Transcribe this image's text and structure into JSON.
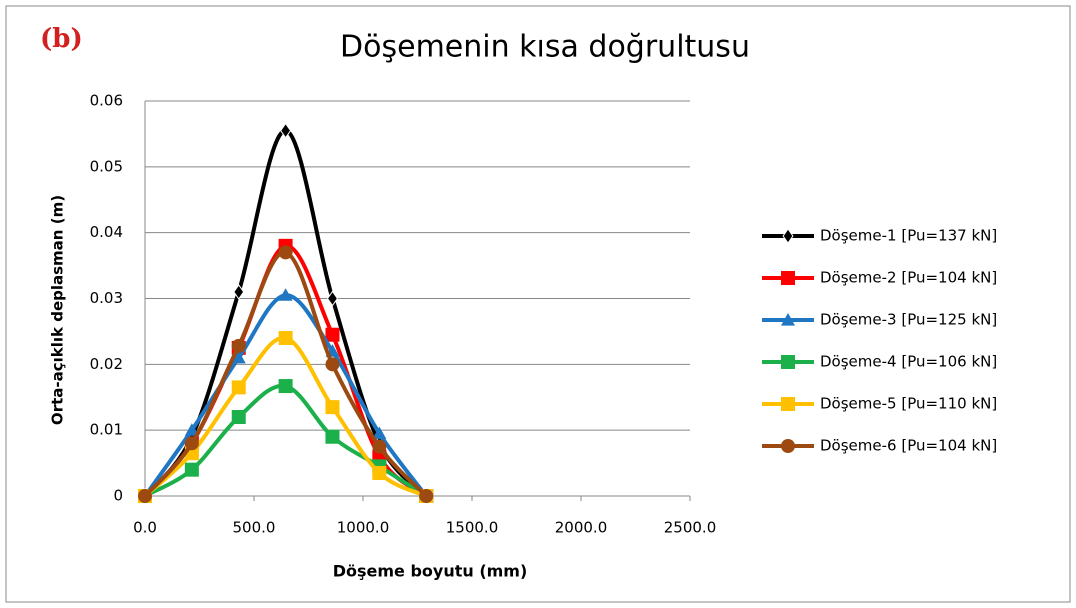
{
  "chart_data": {
    "type": "line",
    "title": "Döşemenin kısa doğrultusu",
    "annotation": "(b)",
    "x_label": "Döşeme boyutu (mm)",
    "y_label": "Orta-açıklık deplasman (m)",
    "xlim": [
      0,
      2500
    ],
    "ylim": [
      0,
      0.06
    ],
    "xticks": [
      {
        "value": 0,
        "label": "0.0"
      },
      {
        "value": 500,
        "label": "500.0"
      },
      {
        "value": 1000,
        "label": "1000.0"
      },
      {
        "value": 1500,
        "label": "1500.0"
      },
      {
        "value": 2000,
        "label": "2000.0"
      },
      {
        "value": 2500,
        "label": "2500.0"
      }
    ],
    "yticks": [
      0,
      0.01,
      0.02,
      0.03,
      0.04,
      0.05,
      0.06
    ],
    "grid": true,
    "legend": "right",
    "smooth": true,
    "x": [
      0,
      215,
      430,
      645,
      860,
      1075,
      1290
    ],
    "series": [
      {
        "name": "Döşeme-1 [Pu=137 kN]",
        "color": "#000000",
        "marker": "diamond",
        "values": [
          0,
          0.009,
          0.031,
          0.0555,
          0.03,
          0.008,
          0
        ]
      },
      {
        "name": "Döşeme-2 [Pu=104 kN]",
        "color": "#ff0000",
        "marker": "square",
        "values": [
          0,
          0.008,
          0.0225,
          0.038,
          0.0245,
          0.006,
          0
        ]
      },
      {
        "name": "Döşeme-3 [Pu=125 kN]",
        "color": "#1f77c4",
        "marker": "triangle",
        "values": [
          0,
          0.01,
          0.021,
          0.0305,
          0.022,
          0.0095,
          0
        ]
      },
      {
        "name": "Döşeme-4 [Pu=106 kN]",
        "color": "#1bb04a",
        "marker": "square",
        "values": [
          0,
          0.004,
          0.012,
          0.0167,
          0.009,
          0.0045,
          0
        ]
      },
      {
        "name": "Döşeme-5 [Pu=110 kN]",
        "color": "#ffc000",
        "marker": "square",
        "values": [
          0,
          0.0065,
          0.0165,
          0.024,
          0.0135,
          0.0035,
          0
        ]
      },
      {
        "name": "Döşeme-6 [Pu=104 kN]",
        "color": "#9c4a12",
        "marker": "circle",
        "values": [
          0,
          0.008,
          0.0228,
          0.037,
          0.02,
          0.0075,
          0
        ]
      }
    ]
  }
}
